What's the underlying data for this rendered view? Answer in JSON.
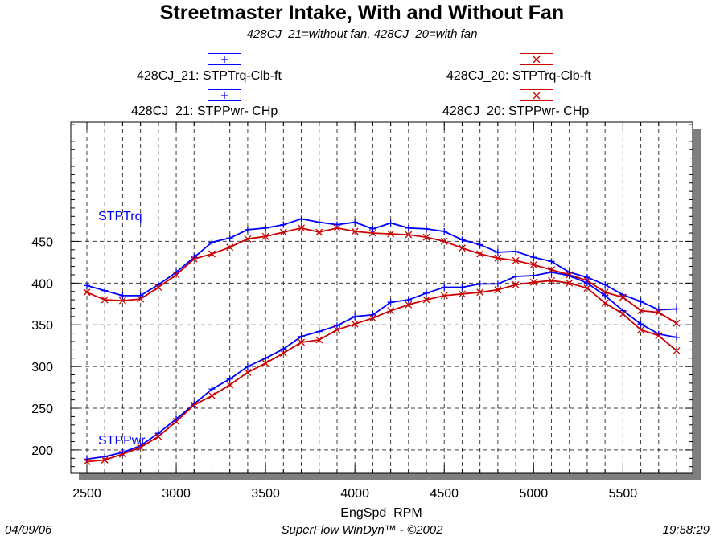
{
  "chart_data": {
    "type": "line",
    "title": "Streetmaster Intake, With and Without Fan",
    "subtitle": "428CJ_21=without fan, 428CJ_20=with fan",
    "xlabel": "EngSpd  RPM",
    "ylabel": "",
    "xlim": [
      2410,
      5890
    ],
    "ylim": [
      172,
      593
    ],
    "xticks": [
      2500,
      3000,
      3500,
      4000,
      4500,
      5000,
      5500
    ],
    "yticks": [
      200,
      250,
      300,
      350,
      400,
      450
    ],
    "x_minor_step": 100,
    "y_minor_step": 10,
    "grid": true,
    "legend_position": "top",
    "curve_labels": [
      "STPTrq",
      "STPPwr"
    ],
    "series": [
      {
        "name": "428CJ_21: STPTrq-Clb-ft",
        "color": "#0000ff",
        "marker": "plus",
        "x": [
          2500,
          2600,
          2700,
          2800,
          2900,
          3000,
          3100,
          3200,
          3300,
          3400,
          3500,
          3600,
          3700,
          3800,
          3900,
          4000,
          4100,
          4200,
          4300,
          4400,
          4500,
          4600,
          4700,
          4800,
          4900,
          5000,
          5100,
          5200,
          5300,
          5400,
          5500,
          5600,
          5700,
          5800
        ],
        "y": [
          397,
          391,
          385,
          385,
          398,
          413,
          431,
          449,
          454,
          464,
          466,
          470,
          477,
          473,
          470,
          473,
          465,
          472,
          466,
          465,
          462,
          452,
          446,
          437,
          438,
          431,
          426,
          413,
          407,
          398,
          386,
          378,
          368,
          369
        ]
      },
      {
        "name": "428CJ_20: STPTrq-Clb-ft",
        "color": "#cc0000",
        "marker": "x",
        "x": [
          2500,
          2600,
          2700,
          2800,
          2900,
          3000,
          3100,
          3200,
          3300,
          3400,
          3500,
          3600,
          3700,
          3800,
          3900,
          4000,
          4100,
          4200,
          4300,
          4400,
          4500,
          4600,
          4700,
          4800,
          4900,
          5000,
          5100,
          5200,
          5300,
          5400,
          5500,
          5600,
          5700,
          5800
        ],
        "y": [
          389,
          380,
          379,
          381,
          395,
          410,
          429,
          435,
          443,
          453,
          456,
          461,
          466,
          461,
          466,
          462,
          460,
          459,
          458,
          455,
          450,
          442,
          435,
          430,
          427,
          422,
          416,
          410,
          403,
          389,
          383,
          367,
          365,
          352
        ]
      },
      {
        "name": "428CJ_21: STPPwr- CHp",
        "color": "#0000ff",
        "marker": "plus",
        "x": [
          2500,
          2600,
          2700,
          2800,
          2900,
          3000,
          3100,
          3200,
          3300,
          3400,
          3500,
          3600,
          3700,
          3800,
          3900,
          4000,
          4100,
          4200,
          4300,
          4400,
          4500,
          4600,
          4700,
          4800,
          4900,
          5000,
          5100,
          5200,
          5300,
          5400,
          5500,
          5600,
          5700,
          5800
        ],
        "y": [
          189,
          192,
          197,
          205,
          220,
          237,
          255,
          273,
          285,
          300,
          310,
          321,
          336,
          342,
          349,
          360,
          362,
          377,
          380,
          388,
          395,
          395,
          399,
          399,
          408,
          409,
          413,
          409,
          400,
          385,
          367,
          351,
          339,
          335
        ]
      },
      {
        "name": "428CJ_20: STPPwr- CHp",
        "color": "#cc0000",
        "marker": "x",
        "x": [
          2500,
          2600,
          2700,
          2800,
          2900,
          3000,
          3100,
          3200,
          3300,
          3400,
          3500,
          3600,
          3700,
          3800,
          3900,
          4000,
          4100,
          4200,
          4300,
          4400,
          4500,
          4600,
          4700,
          4800,
          4900,
          5000,
          5100,
          5200,
          5300,
          5400,
          5500,
          5600,
          5700,
          5800
        ],
        "y": [
          186,
          188,
          195,
          203,
          216,
          234,
          254,
          265,
          278,
          293,
          304,
          316,
          329,
          332,
          344,
          351,
          358,
          367,
          374,
          380,
          385,
          387,
          389,
          392,
          398,
          401,
          403,
          400,
          394,
          376,
          363,
          344,
          337,
          319
        ]
      }
    ]
  },
  "footer": {
    "date": "04/09/06",
    "software": "SuperFlow WinDyn™ - ©2002",
    "time": "19:58:29"
  },
  "colors": {
    "without_fan": "#0000ff",
    "with_fan": "#cc0000",
    "plot_shadow": "#7f7f7f"
  }
}
